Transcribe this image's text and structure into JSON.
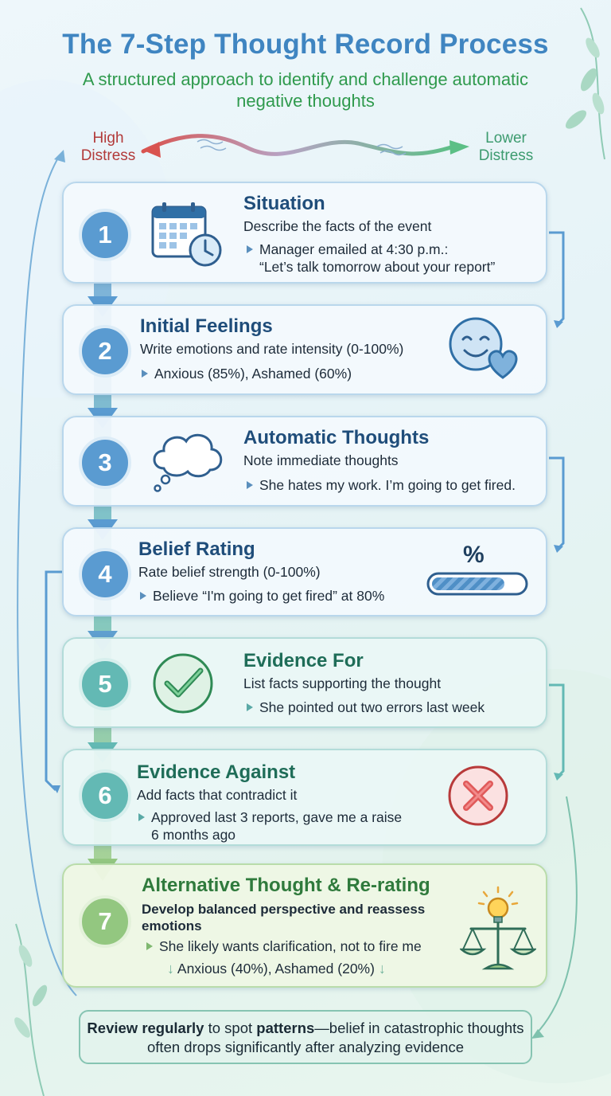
{
  "title": "The 7-Step Thought Record Process",
  "subtitle": "A structured approach to identify and challenge automatic negative thoughts",
  "scale": {
    "high_label": "High Distress",
    "low_label": "Lower Distress"
  },
  "steps": [
    {
      "number": "1",
      "title": "Situation",
      "description": "Describe the facts of the event",
      "example_line1": "Manager emailed at 4:30 p.m.:",
      "example_line2": "“Let’s talk tomorrow about your report”"
    },
    {
      "number": "2",
      "title": "Initial Feelings",
      "description": "Write emotions and rate intensity (0-100%)",
      "example": "Anxious (85%), Ashamed (60%)"
    },
    {
      "number": "3",
      "title": "Automatic Thoughts",
      "description": "Note immediate thoughts",
      "example": "She hates my work. I’m going to get fired."
    },
    {
      "number": "4",
      "title": "Belief Rating",
      "description": "Rate belief strength (0-100%)",
      "example": "Believe “I'm going to get fired” at 80%",
      "icon_label": "%",
      "belief_level": 0.8
    },
    {
      "number": "5",
      "title": "Evidence For",
      "description": "List facts supporting the thought",
      "example": "She pointed out two errors last week"
    },
    {
      "number": "6",
      "title": "Evidence Against",
      "description": "Add facts that contradict it",
      "example_line1": "Approved last 3 reports, gave me a raise",
      "example_line2": "6 months ago"
    },
    {
      "number": "7",
      "title": "Alternative Thought & Re-rating",
      "description": "Develop balanced perspective and reassess emotions",
      "example": "She likely wants clarification, not to fire me",
      "rerating": "Anxious (40%), Ashamed (20%)"
    }
  ],
  "footer": {
    "part1": "Review regularly",
    "part2": " to spot ",
    "part3": "patterns",
    "part4": "—belief in catastrophic thoughts often drops significantly after analyzing evidence"
  },
  "colors": {
    "title": "#3f85c1",
    "subtitle": "#2f9a4d",
    "high": "#b23a3a",
    "low": "#3d9b6f",
    "blue": "#5a9bd1",
    "teal": "#63b9b4",
    "green": "#93c780"
  }
}
